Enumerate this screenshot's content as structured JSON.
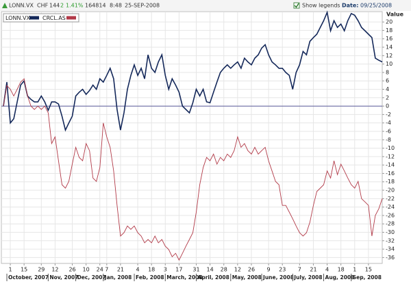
{
  "header": {
    "symbol": "LONN.VX",
    "currency": "CHF",
    "price": "144",
    "change": "2",
    "change_pct": "1.41%",
    "volume": "164814",
    "time": "8:48",
    "date": "25-SEP-2008",
    "show_legends": "Show legends",
    "date_label": "Date:",
    "date_value": "09/25/2008"
  },
  "chart_data": {
    "type": "line",
    "y_label": "Value",
    "grid": true,
    "zero_line": true,
    "legend": "top-left",
    "xlim": [
      0,
      110
    ],
    "ylim": [
      -37.4,
      22.3
    ],
    "yticks": [
      20,
      18,
      16,
      14,
      12,
      10,
      8,
      6,
      4,
      2,
      0,
      -2,
      -4,
      -6,
      -8,
      -10,
      -12,
      -14,
      -16,
      -18,
      -20,
      -22,
      -24,
      -26,
      -28,
      -30,
      -32,
      -34,
      -36
    ],
    "xticks": [
      {
        "value": 2,
        "label": "1"
      },
      {
        "value": 6,
        "label": "15"
      },
      {
        "value": 11,
        "label": "29"
      },
      {
        "value": 15,
        "label": "12"
      },
      {
        "value": 20,
        "label": "26"
      },
      {
        "value": 24,
        "label": "10"
      },
      {
        "value": 28,
        "label": "24"
      },
      {
        "value": 30,
        "label": "7"
      },
      {
        "value": 34,
        "label": "21"
      },
      {
        "value": 39,
        "label": "4"
      },
      {
        "value": 43,
        "label": "18"
      },
      {
        "value": 47,
        "label": "3"
      },
      {
        "value": 51,
        "label": "17"
      },
      {
        "value": 56,
        "label": "31"
      },
      {
        "value": 60,
        "label": "14"
      },
      {
        "value": 64,
        "label": "28"
      },
      {
        "value": 68,
        "label": "12"
      },
      {
        "value": 72,
        "label": "26"
      },
      {
        "value": 77,
        "label": "9"
      },
      {
        "value": 81,
        "label": "23"
      },
      {
        "value": 86,
        "label": "7"
      },
      {
        "value": 90,
        "label": "21"
      },
      {
        "value": 94,
        "label": "4"
      },
      {
        "value": 98,
        "label": "18"
      },
      {
        "value": 102,
        "label": "1"
      },
      {
        "value": 106,
        "label": "15"
      }
    ],
    "month_ticks": [
      {
        "value": 1,
        "label": "October, 2007"
      },
      {
        "value": 13,
        "label": "Nov, 2007"
      },
      {
        "value": 21,
        "label": "Dec, 2007"
      },
      {
        "value": 29,
        "label": "Jan, 2008"
      },
      {
        "value": 38,
        "label": "Feb, 2008"
      },
      {
        "value": 47,
        "label": "March, 2008"
      },
      {
        "value": 56,
        "label": "April, 2008"
      },
      {
        "value": 66,
        "label": "May, 2008"
      },
      {
        "value": 75,
        "label": "June, 2008"
      },
      {
        "value": 84,
        "label": "July, 2008"
      },
      {
        "value": 93,
        "label": "Aug, 2008"
      },
      {
        "value": 101,
        "label": "Sep, 2008"
      }
    ],
    "x": [
      0,
      1,
      2,
      3,
      4,
      5,
      6,
      7,
      8,
      9,
      10,
      11,
      12,
      13,
      14,
      15,
      16,
      17,
      18,
      19,
      20,
      21,
      22,
      23,
      24,
      25,
      26,
      27,
      28,
      29,
      30,
      31,
      32,
      33,
      34,
      35,
      36,
      37,
      38,
      39,
      40,
      41,
      42,
      43,
      44,
      45,
      46,
      47,
      48,
      49,
      50,
      51,
      52,
      53,
      54,
      55,
      56,
      57,
      58,
      59,
      60,
      61,
      62,
      63,
      64,
      65,
      66,
      67,
      68,
      69,
      70,
      71,
      72,
      73,
      74,
      75,
      76,
      77,
      78,
      79,
      80,
      81,
      82,
      83,
      84,
      85,
      86,
      87,
      88,
      89,
      90,
      91,
      92,
      93,
      94,
      95,
      96,
      97,
      98,
      99,
      100,
      101,
      102,
      103,
      104,
      105,
      106,
      107,
      108,
      109,
      110
    ],
    "series": [
      {
        "name": "LONN.VX",
        "color": "#14285a",
        "values": [
          0,
          5.7,
          -4,
          -3,
          1,
          5,
          6,
          2.4,
          1.6,
          1,
          1,
          2.4,
          1,
          -1,
          1,
          1,
          0.5,
          -2.4,
          -5.7,
          -4,
          -2.4,
          2.4,
          3.3,
          4,
          2.8,
          3.7,
          5,
          4,
          6.5,
          5.7,
          7.3,
          9,
          6.5,
          -0.8,
          -5.7,
          -1.6,
          4,
          7.3,
          9.8,
          7.3,
          9,
          6.5,
          12.2,
          9,
          8,
          10.5,
          12.2,
          7.3,
          4,
          6.5,
          5,
          3.3,
          0,
          -0.8,
          -1.6,
          0.8,
          4,
          2.4,
          4,
          1,
          0.8,
          3.3,
          5.7,
          8,
          9,
          9.8,
          9,
          9.8,
          10.5,
          9,
          11.4,
          10.5,
          9.8,
          11.4,
          12.2,
          13.8,
          14.6,
          12.2,
          10.5,
          9.8,
          9,
          9,
          8,
          7.3,
          4,
          8,
          9.8,
          13,
          12.2,
          15.4,
          16.3,
          17.1,
          18.7,
          20.3,
          22.3,
          17.9,
          20.3,
          18.7,
          19.5,
          17.9,
          20.3,
          22,
          21.6,
          20.3,
          18.7,
          17.9,
          17.1,
          16.3,
          11.4,
          10.9,
          10.5
        ]
      },
      {
        "name": "CRCL.AS",
        "color": "#b23a48",
        "values": [
          0,
          4.9,
          4,
          2.4,
          4,
          5.7,
          6.5,
          2.4,
          0,
          -0.8,
          0,
          -0.8,
          0,
          -1.6,
          -8.9,
          -7.3,
          -13,
          -18.7,
          -19.5,
          -17.9,
          -13.8,
          -9.8,
          -12.2,
          -13,
          -8.9,
          -10.6,
          -17.1,
          -17.9,
          -14.6,
          -4,
          -7.3,
          -9.8,
          -15.4,
          -23.6,
          -30.9,
          -30.1,
          -28.5,
          -29.3,
          -28.5,
          -30.1,
          -30.9,
          -32.5,
          -31.7,
          -32.5,
          -30.9,
          -32.5,
          -31.7,
          -33.3,
          -34.1,
          -35.8,
          -35,
          -36.6,
          -35,
          -33.3,
          -31.7,
          -30.1,
          -25.2,
          -18.7,
          -14.6,
          -12.2,
          -13,
          -11.4,
          -13.8,
          -12.2,
          -13,
          -11.4,
          -12.2,
          -10.6,
          -7.3,
          -9.8,
          -8.9,
          -10.6,
          -11.4,
          -9.8,
          -11.4,
          -10.6,
          -9.8,
          -13,
          -15.4,
          -17.9,
          -18.7,
          -23.6,
          -23.6,
          -25.2,
          -26.8,
          -28.5,
          -30.1,
          -30.9,
          -30.1,
          -27.6,
          -23.6,
          -20.3,
          -19.5,
          -18.7,
          -15.4,
          -17.1,
          -13,
          -16.3,
          -13.8,
          -15.4,
          -17.1,
          -18.7,
          -19.5,
          -17.9,
          -22,
          -22.8,
          -23.6,
          -30.9,
          -26,
          -24.4,
          -22
        ]
      }
    ]
  }
}
